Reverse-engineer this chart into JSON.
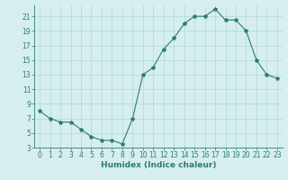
{
  "x": [
    0,
    1,
    2,
    3,
    4,
    5,
    6,
    7,
    8,
    9,
    10,
    11,
    12,
    13,
    14,
    15,
    16,
    17,
    18,
    19,
    20,
    21,
    22,
    23
  ],
  "y": [
    8,
    7,
    6.5,
    6.5,
    5.5,
    4.5,
    4,
    4,
    3.5,
    7,
    13,
    14,
    16.5,
    18,
    20,
    21,
    21,
    22,
    20.5,
    20.5,
    19,
    15,
    13,
    12.5
  ],
  "ylim": [
    3,
    22
  ],
  "yticks": [
    3,
    5,
    7,
    9,
    11,
    13,
    15,
    17,
    19,
    21
  ],
  "xticks": [
    0,
    1,
    2,
    3,
    4,
    5,
    6,
    7,
    8,
    9,
    10,
    11,
    12,
    13,
    14,
    15,
    16,
    17,
    18,
    19,
    20,
    21,
    22,
    23
  ],
  "xlabel": "Humidex (Indice chaleur)",
  "line_color": "#2e7d6e",
  "bg_color": "#d6eeee",
  "grid_color": "#b0d8d8",
  "marker": "*",
  "marker_size": 3,
  "tick_fontsize": 5.5,
  "xlabel_fontsize": 6.5
}
